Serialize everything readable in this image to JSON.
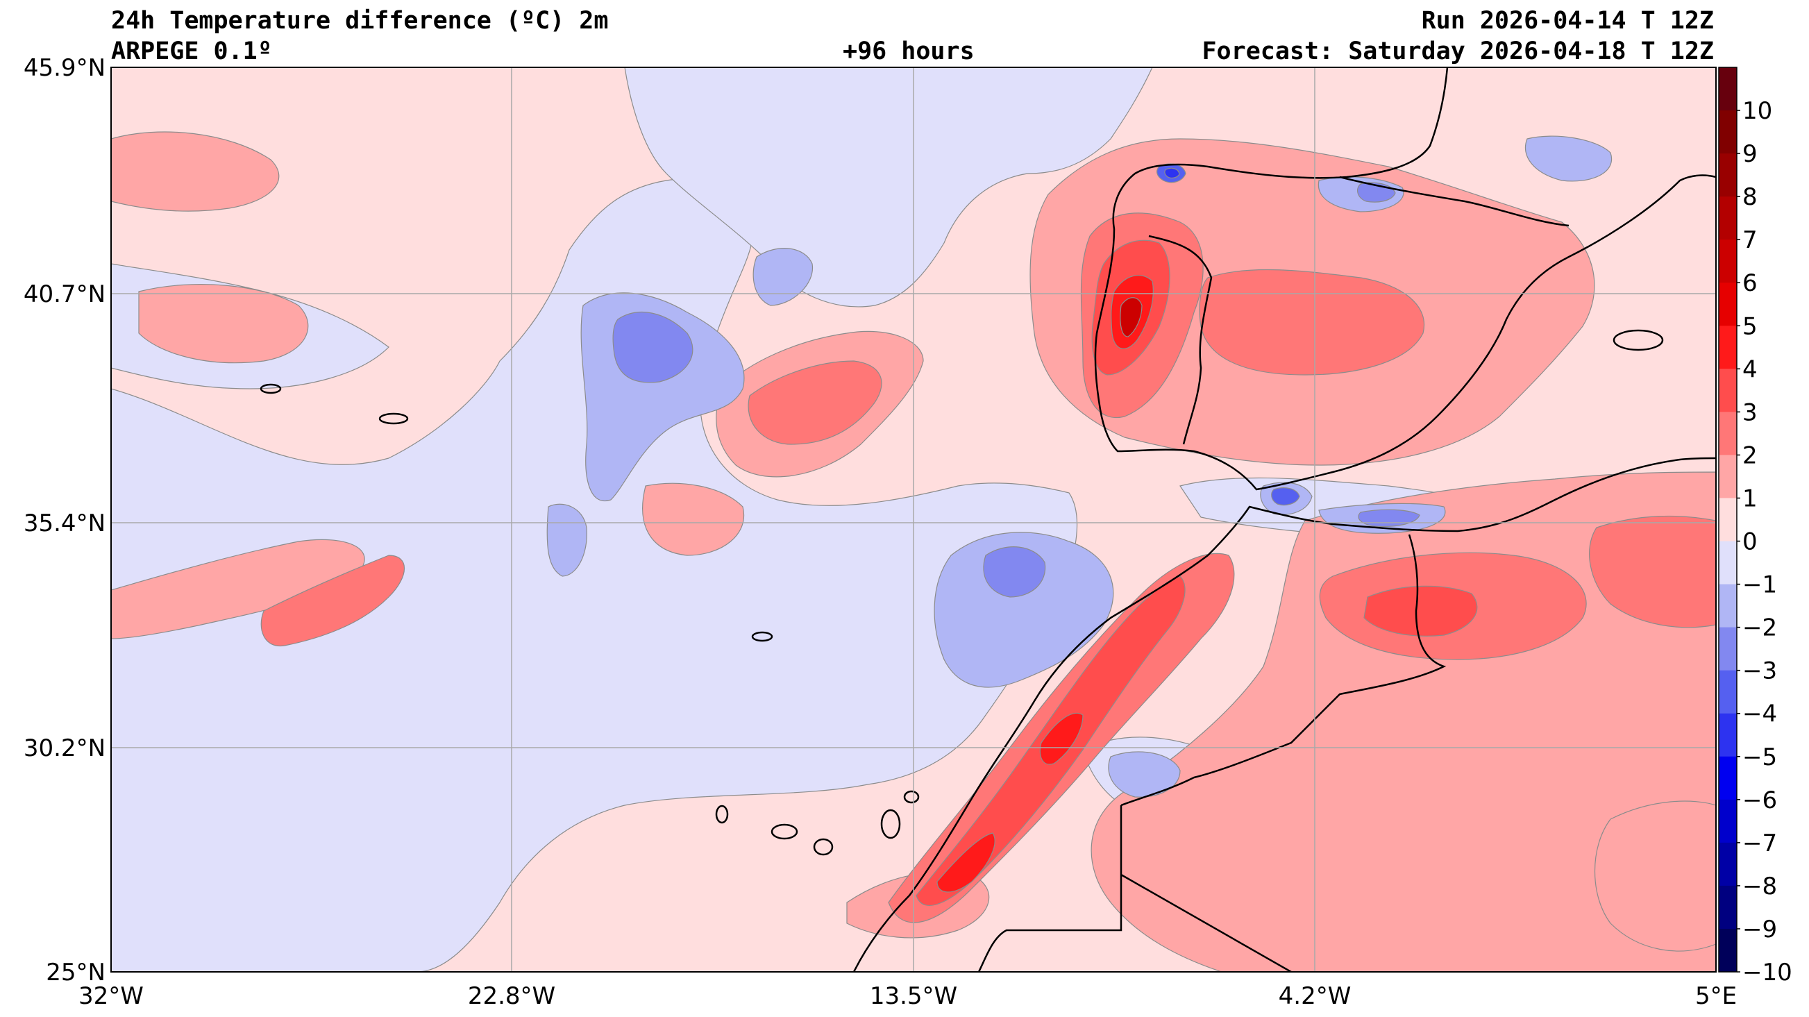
{
  "header": {
    "title": "24h Temperature difference (ºC) 2m",
    "model": "ARPEGE 0.1º",
    "lead": "+96 hours",
    "run": "Run 2026-04-14 T 12Z",
    "forecast": "Forecast: Saturday 2026-04-18 T 12Z"
  },
  "axes": {
    "lon_labels": [
      "32°W",
      "22.8°W",
      "13.5°W",
      "4.2°W",
      "5°E"
    ],
    "lat_labels": [
      "45.9°N",
      "40.7°N",
      "35.4°N",
      "30.2°N",
      "25°N"
    ],
    "lon_range": [
      -32,
      5
    ],
    "lat_range": [
      25,
      45.9
    ]
  },
  "colorbar": {
    "labels": [
      "10",
      "9",
      "8",
      "7",
      "6",
      "5",
      "4",
      "3",
      "2",
      "1",
      "0",
      "−1",
      "−2",
      "−3",
      "−4",
      "−5",
      "−6",
      "−7",
      "−8",
      "−9",
      "−10"
    ],
    "colors": [
      "#67000d",
      "#800000",
      "#990000",
      "#b30000",
      "#cc0000",
      "#e60000",
      "#ff1a1a",
      "#ff4d4d",
      "#ff7777",
      "#ffa6a6",
      "#ffdede",
      "#e0e0fb",
      "#b0b6f5",
      "#8288f0",
      "#5560f0",
      "#2d33f0",
      "#0000f0",
      "#0000cc",
      "#0000a6",
      "#000080",
      "#00005a"
    ]
  },
  "palette": {
    "zero_pos": "#ffdede",
    "zero_neg": "#e0e0fb",
    "pos1": "#ffa6a6",
    "pos2": "#ff7777",
    "pos3": "#ff4d4d",
    "pos4": "#ff1a1a",
    "pos6": "#cc0000",
    "neg1": "#b0b6f5",
    "neg2": "#8288f0",
    "neg3": "#5560f0",
    "neg4": "#2d33f0"
  }
}
